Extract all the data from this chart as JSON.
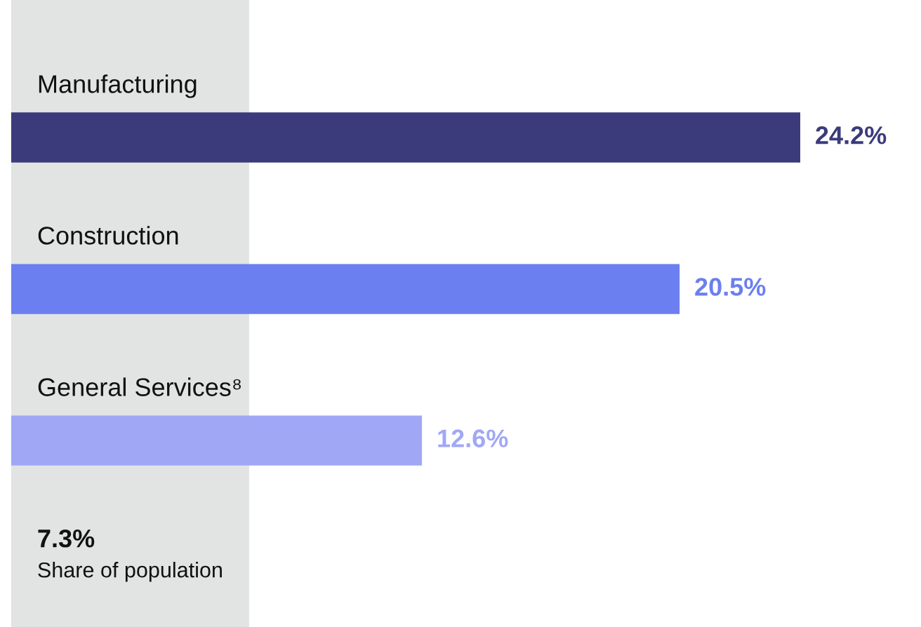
{
  "chart_data": {
    "type": "bar",
    "orientation": "horizontal",
    "categories": [
      "Manufacturing",
      "Construction",
      "General Services⁸"
    ],
    "values": [
      24.2,
      20.5,
      12.6
    ],
    "colors": [
      "#3b3b7b",
      "#6b7ff0",
      "#a0a8f5"
    ],
    "value_labels": [
      "24.2%",
      "20.5%",
      "12.6%"
    ],
    "bands": [
      {
        "axis": "x",
        "from": 0,
        "to": 7.3,
        "label": "7.3%\nShare of population",
        "color": "#e1e4e3"
      }
    ]
  }
}
